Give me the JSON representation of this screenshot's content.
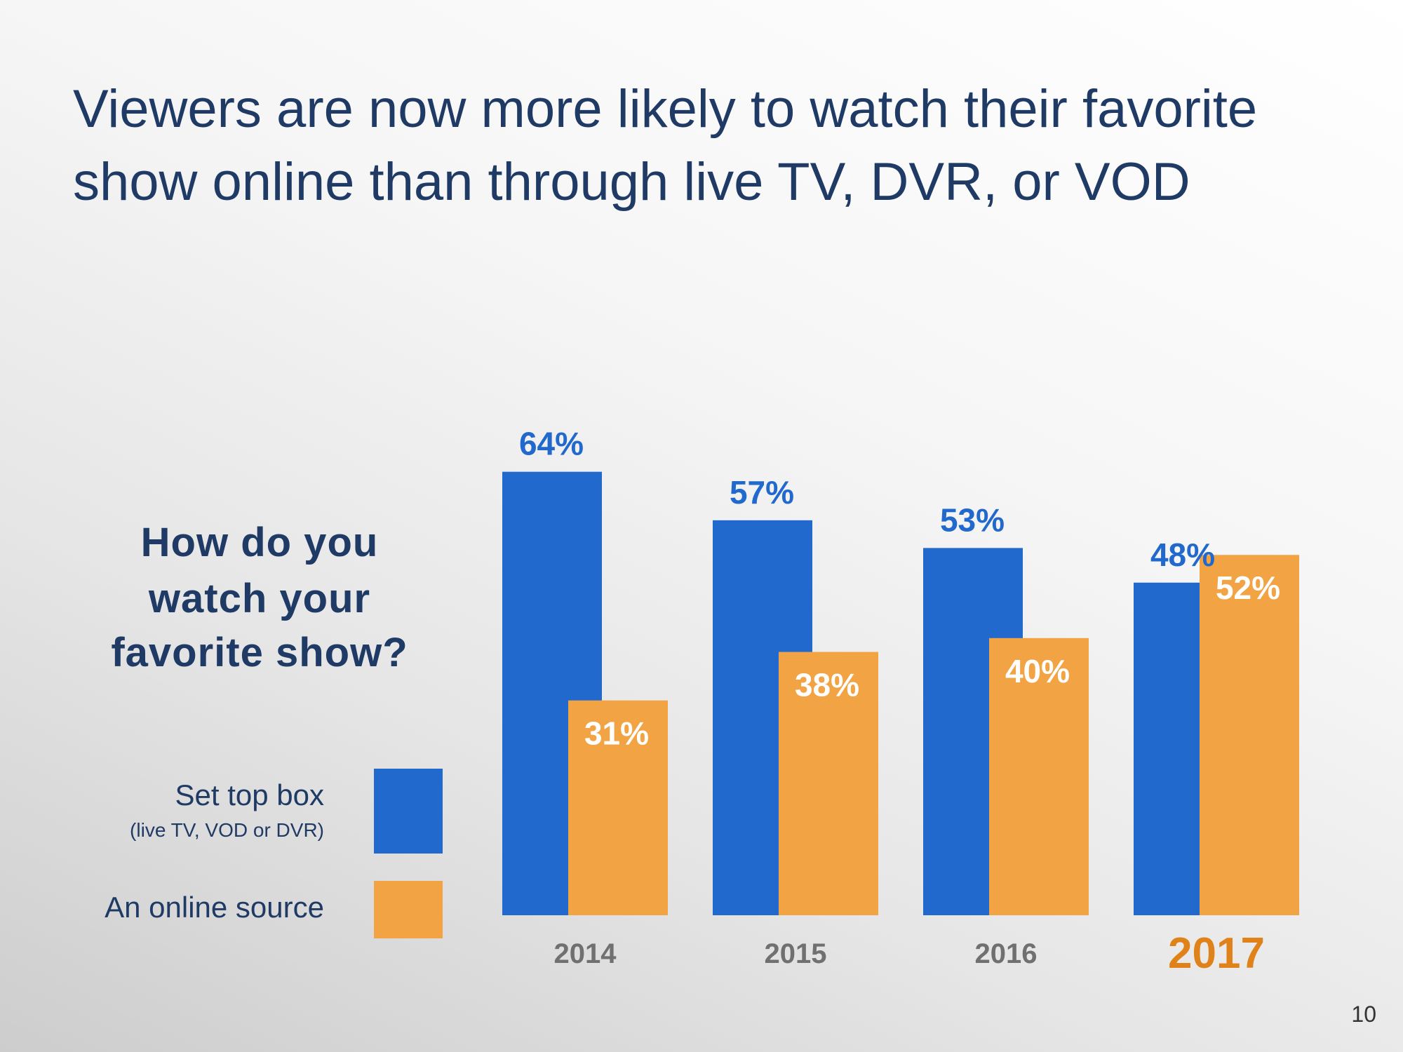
{
  "slide": {
    "title_line_1": "Viewers are now more likely to watch their favorite",
    "title_line_2": "show online than through live TV, DVR, or VOD",
    "question_line_1": "How do you",
    "question_line_2": "watch your",
    "question_line_3": "favorite show?",
    "page_number": "10"
  },
  "legend": {
    "set_top_box_label": "Set top box",
    "set_top_box_sub": "(live TV, VOD or DVR)",
    "online_label": "An online source"
  },
  "colors": {
    "set_top_box": "#2169cc",
    "online": "#f2a444",
    "title": "#1f3a64",
    "axis_label": "#707070",
    "highlight_year": "#e0821a",
    "data_label_blue": "#2169cc",
    "data_label_on_bar": "#ffffff"
  },
  "chart_data": {
    "type": "bar",
    "title": "How do you watch your favorite show?",
    "xlabel": "",
    "ylabel": "",
    "ylim": [
      0,
      70
    ],
    "grid": false,
    "legend_position": "left",
    "categories": [
      "2014",
      "2015",
      "2016",
      "2017"
    ],
    "highlight_category": "2017",
    "series": [
      {
        "name": "Set top box (live TV, VOD or DVR)",
        "values": [
          64,
          57,
          53,
          48
        ],
        "labels": [
          "64%",
          "57%",
          "53%",
          "48%"
        ]
      },
      {
        "name": "An online source",
        "values": [
          31,
          38,
          40,
          52
        ],
        "labels": [
          "31%",
          "38%",
          "40%",
          "52%"
        ]
      }
    ]
  }
}
